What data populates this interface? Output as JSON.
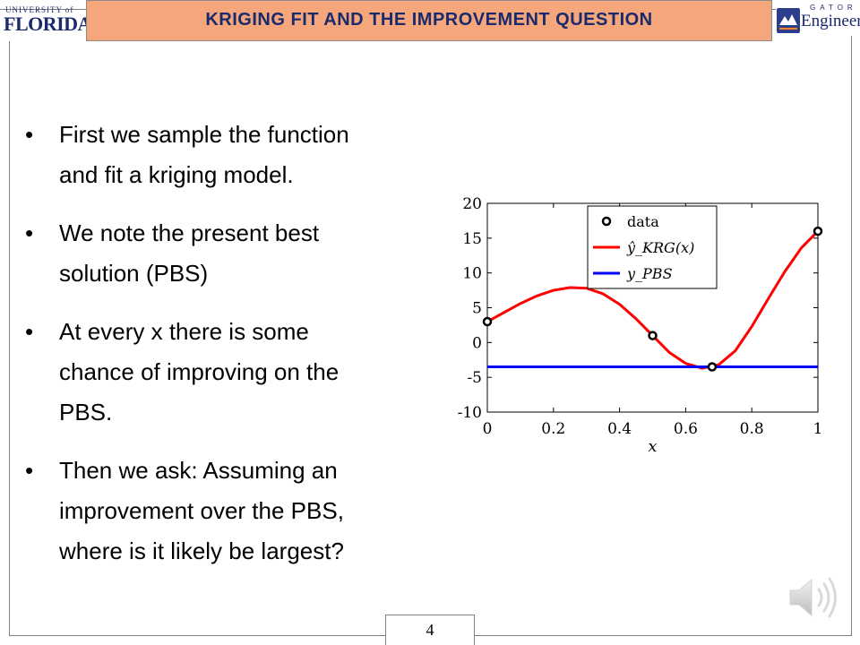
{
  "header": {
    "title": "KRIGING FIT AND THE IMPROVEMENT QUESTION",
    "title_bg": "#f5a77b",
    "title_color": "#1a2a6c"
  },
  "logos": {
    "left": {
      "line1": "UNIVERSITY of",
      "line2": "FLORIDA"
    },
    "right": {
      "line1": "GATOR",
      "line2": "Engineering"
    }
  },
  "bullets": [
    {
      "marker": "•",
      "text_line1": "First we sample the function",
      "text_line2": "and fit a kriging model.",
      "text_line3": ""
    },
    {
      "marker": "•",
      "text_line1": "We note the present best",
      "text_line2": "solution (PBS)",
      "text_line3": ""
    },
    {
      "marker": "•",
      "text_line1": "At every x there is some",
      "text_line2": "chance of improving on the",
      "text_line3": "PBS."
    },
    {
      "marker": "•",
      "text_line1": "Then we ask: Assuming an",
      "text_line2": "improvement over the PBS,",
      "text_line3": "where is it likely be largest?"
    }
  ],
  "page_number": "4",
  "chart_data": {
    "type": "line",
    "xlabel": "x",
    "ylabel": "",
    "xlim": [
      0,
      1
    ],
    "ylim": [
      -10,
      20
    ],
    "xticks": [
      "0",
      "0.2",
      "0.4",
      "0.6",
      "0.8",
      "1"
    ],
    "yticks": [
      "20",
      "15",
      "10",
      "5",
      "0",
      "-5",
      "-10"
    ],
    "grid": false,
    "legend_position": "top-right",
    "series": [
      {
        "name": "data",
        "kind": "scatter",
        "color": "#000000",
        "x": [
          0,
          0.5,
          0.68,
          1
        ],
        "y": [
          3,
          1,
          -3.5,
          16
        ]
      },
      {
        "name": "ŷ_KRG(x)",
        "kind": "line",
        "color": "#ff0000",
        "x": [
          0,
          0.05,
          0.1,
          0.15,
          0.2,
          0.25,
          0.3,
          0.35,
          0.4,
          0.45,
          0.5,
          0.55,
          0.6,
          0.65,
          0.7,
          0.75,
          0.8,
          0.85,
          0.9,
          0.95,
          1
        ],
        "y": [
          3,
          4.3,
          5.6,
          6.7,
          7.5,
          7.9,
          7.8,
          7.0,
          5.5,
          3.4,
          1,
          -1.4,
          -3.0,
          -3.7,
          -3.2,
          -1.2,
          2.3,
          6.3,
          10.2,
          13.6,
          16
        ]
      },
      {
        "name": "y_PBS",
        "kind": "line",
        "color": "#0000ff",
        "x": [
          0,
          1
        ],
        "y": [
          -3.5,
          -3.5
        ]
      }
    ]
  }
}
